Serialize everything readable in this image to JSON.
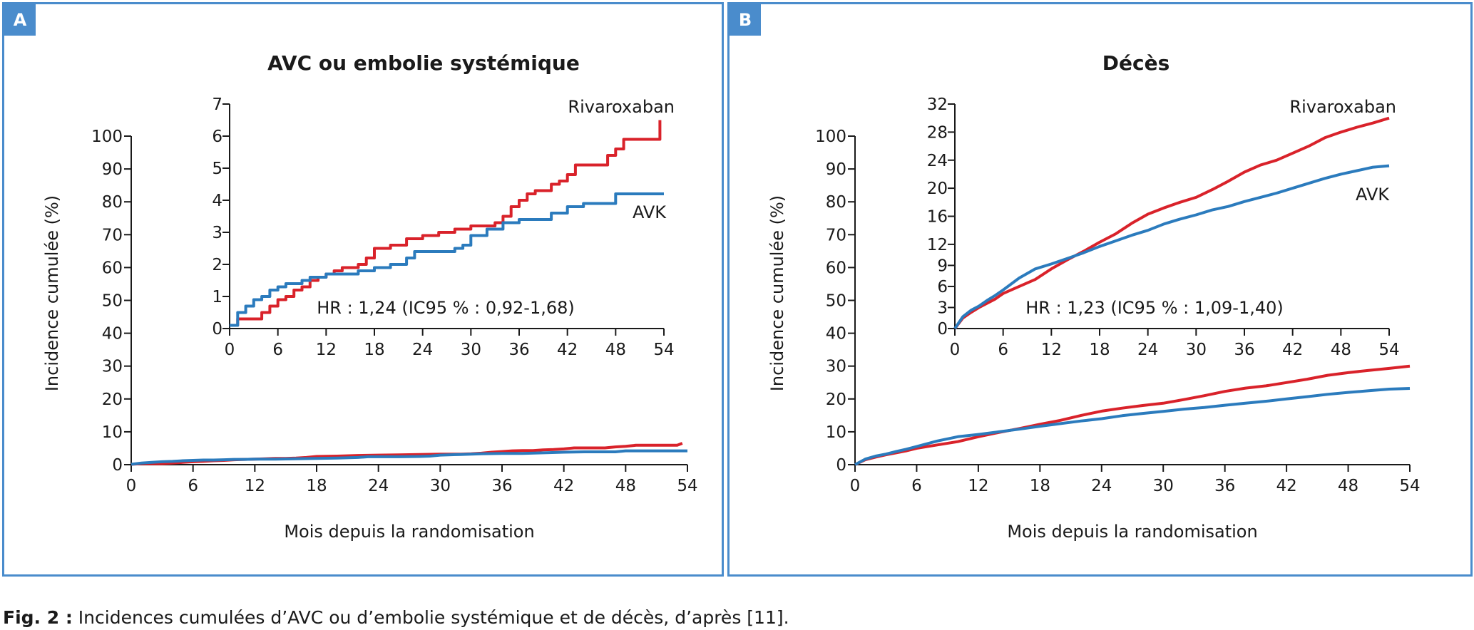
{
  "colors": {
    "frame": "#4a8ccc",
    "rivaroxaban": "#d9222a",
    "avk": "#2b7bbd",
    "axis": "#1a1a1a"
  },
  "panels": [
    {
      "label": "A",
      "title": "AVC ou embolie systémique",
      "ylabel": "Incidence cumulée (%)",
      "xlabel": "Mois depuis la randomisation",
      "hr_text": "HR : 1,24 (IC95 % : 0,92-1,68)",
      "legend_riva": "Rivaroxaban",
      "legend_avk": "AVK",
      "xticks": [
        "0",
        "6",
        "12",
        "18",
        "24",
        "30",
        "36",
        "42",
        "48",
        "54"
      ],
      "main_yticks": [
        "0",
        "10",
        "20",
        "30",
        "40",
        "50",
        "60",
        "70",
        "80",
        "90",
        "100"
      ],
      "inset_yticks": [
        "0",
        "1",
        "2",
        "3",
        "4",
        "5",
        "6",
        "7"
      ]
    },
    {
      "label": "B",
      "title": "Décès",
      "ylabel": "Incidence cumulée (%)",
      "xlabel": "Mois depuis la randomisation",
      "hr_text": "HR : 1,23 (IC95 % : 1,09-1,40)",
      "legend_riva": "Rivaroxaban",
      "legend_avk": "AVK",
      "xticks": [
        "0",
        "6",
        "12",
        "18",
        "24",
        "30",
        "36",
        "42",
        "48",
        "54"
      ],
      "main_yticks": [
        "0",
        "10",
        "20",
        "30",
        "40",
        "50",
        "60",
        "70",
        "80",
        "90",
        "100"
      ],
      "inset_yticks": [
        "0",
        "3",
        "6",
        "9",
        "12",
        "16",
        "20",
        "24",
        "28",
        "32"
      ]
    }
  ],
  "chart_data": [
    {
      "type": "line",
      "title": "AVC ou embolie systémique",
      "xlabel": "Mois depuis la randomisation",
      "ylabel": "Incidence cumulée (%)",
      "xlim": [
        0,
        54
      ],
      "ylim": [
        0,
        100
      ],
      "inset": {
        "xlim": [
          0,
          54
        ],
        "ylim": [
          0,
          7
        ],
        "annotation": "HR : 1,24 (IC95 % : 0,92-1,68)"
      },
      "series": [
        {
          "name": "Rivaroxaban",
          "x": [
            0,
            1,
            2,
            3,
            4,
            5,
            6,
            7,
            8,
            9,
            10,
            11,
            12,
            13,
            14,
            15,
            16,
            17,
            18,
            20,
            22,
            24,
            26,
            28,
            30,
            32,
            33,
            34,
            35,
            36,
            37,
            38,
            39,
            40,
            41,
            42,
            43,
            44,
            45,
            46,
            47,
            48,
            49,
            50,
            51,
            52,
            53,
            53.5
          ],
          "y": [
            0.1,
            0.3,
            0.3,
            0.3,
            0.5,
            0.7,
            0.9,
            1.0,
            1.2,
            1.3,
            1.5,
            1.6,
            1.7,
            1.8,
            1.9,
            1.9,
            2.0,
            2.2,
            2.5,
            2.6,
            2.8,
            2.9,
            3.0,
            3.1,
            3.2,
            3.2,
            3.3,
            3.5,
            3.8,
            4.0,
            4.2,
            4.3,
            4.3,
            4.5,
            4.6,
            4.8,
            5.1,
            5.1,
            5.1,
            5.1,
            5.4,
            5.6,
            5.9,
            5.9,
            5.9,
            5.9,
            5.9,
            6.5
          ]
        },
        {
          "name": "AVK",
          "x": [
            0,
            1,
            2,
            3,
            4,
            5,
            6,
            7,
            8,
            9,
            10,
            11,
            12,
            14,
            16,
            18,
            20,
            22,
            23,
            24,
            26,
            28,
            29,
            30,
            32,
            34,
            36,
            38,
            40,
            42,
            44,
            46,
            47,
            48,
            50,
            52,
            54
          ],
          "y": [
            0.1,
            0.5,
            0.7,
            0.9,
            1.0,
            1.2,
            1.3,
            1.4,
            1.4,
            1.5,
            1.6,
            1.6,
            1.7,
            1.7,
            1.8,
            1.9,
            2.0,
            2.2,
            2.4,
            2.4,
            2.4,
            2.5,
            2.6,
            2.9,
            3.1,
            3.3,
            3.4,
            3.4,
            3.6,
            3.8,
            3.9,
            3.9,
            3.9,
            4.2,
            4.2,
            4.2,
            4.2
          ]
        }
      ]
    },
    {
      "type": "line",
      "title": "Décès",
      "xlabel": "Mois depuis la randomisation",
      "ylabel": "Incidence cumulée (%)",
      "xlim": [
        0,
        54
      ],
      "ylim": [
        0,
        100
      ],
      "inset": {
        "xlim": [
          0,
          54
        ],
        "ylim": [
          0,
          32
        ],
        "annotation": "HR : 1,23 (IC95 % : 1,09-1,40)"
      },
      "series": [
        {
          "name": "Rivaroxaban",
          "x": [
            0,
            1,
            2,
            3,
            4,
            5,
            6,
            8,
            10,
            12,
            14,
            16,
            18,
            20,
            22,
            24,
            26,
            28,
            30,
            32,
            34,
            36,
            38,
            40,
            42,
            44,
            46,
            48,
            50,
            52,
            54
          ],
          "y": [
            0,
            1.5,
            2.3,
            3.0,
            3.6,
            4.2,
            5.0,
            6.0,
            7.0,
            8.5,
            9.8,
            11.0,
            12.3,
            13.5,
            15.0,
            16.3,
            17.2,
            18.0,
            18.7,
            19.8,
            21.0,
            22.3,
            23.3,
            24.0,
            25.0,
            26.0,
            27.2,
            28.0,
            28.7,
            29.3,
            30.0
          ]
        },
        {
          "name": "AVK",
          "x": [
            0,
            1,
            2,
            3,
            4,
            5,
            6,
            8,
            10,
            12,
            14,
            16,
            18,
            20,
            22,
            24,
            26,
            28,
            30,
            32,
            34,
            36,
            38,
            40,
            42,
            44,
            46,
            48,
            50,
            52,
            54
          ],
          "y": [
            0,
            1.7,
            2.6,
            3.2,
            4.0,
            4.7,
            5.5,
            7.2,
            8.5,
            9.2,
            10.0,
            10.8,
            11.7,
            12.5,
            13.3,
            14.0,
            14.9,
            15.6,
            16.2,
            16.9,
            17.4,
            18.1,
            18.7,
            19.3,
            20.0,
            20.7,
            21.4,
            22.0,
            22.5,
            23.0,
            23.2
          ]
        }
      ]
    }
  ],
  "caption": {
    "bold": "Fig. 2 :",
    "text": "Incidences cumulées d’AVC ou d’embolie systémique et de décès, d’après [11]."
  }
}
